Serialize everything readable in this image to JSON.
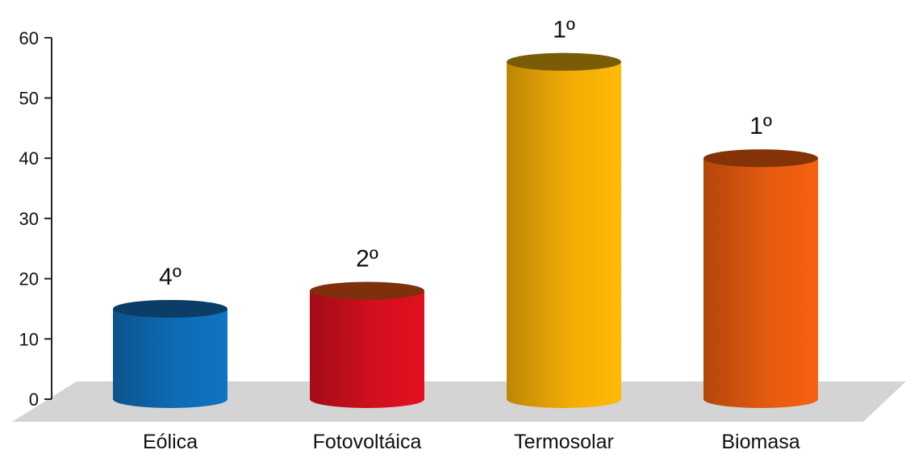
{
  "chart_data": {
    "type": "bar",
    "style": "3d-cylinder",
    "title": "",
    "xlabel": "",
    "ylabel": "",
    "ylim": [
      0,
      60
    ],
    "yticks": [
      0,
      10,
      20,
      30,
      40,
      50,
      60
    ],
    "grid": false,
    "legend": "none",
    "categories": [
      "Eólica",
      "Fotovoltáica",
      "Termosolar",
      "Biomasa"
    ],
    "values": [
      15,
      18,
      56,
      40
    ],
    "data_labels": [
      "4º",
      "2º",
      "1º",
      "1º"
    ],
    "colors": {
      "bars": [
        "#0e6bb5",
        "#d10f1e",
        "#f2ac06",
        "#e45a10"
      ],
      "bar_tops": [
        "#0b3d66",
        "#7e2f0c",
        "#7a5c07",
        "#833305"
      ],
      "floor": "#d4d4d4",
      "axis": "#222222"
    }
  }
}
